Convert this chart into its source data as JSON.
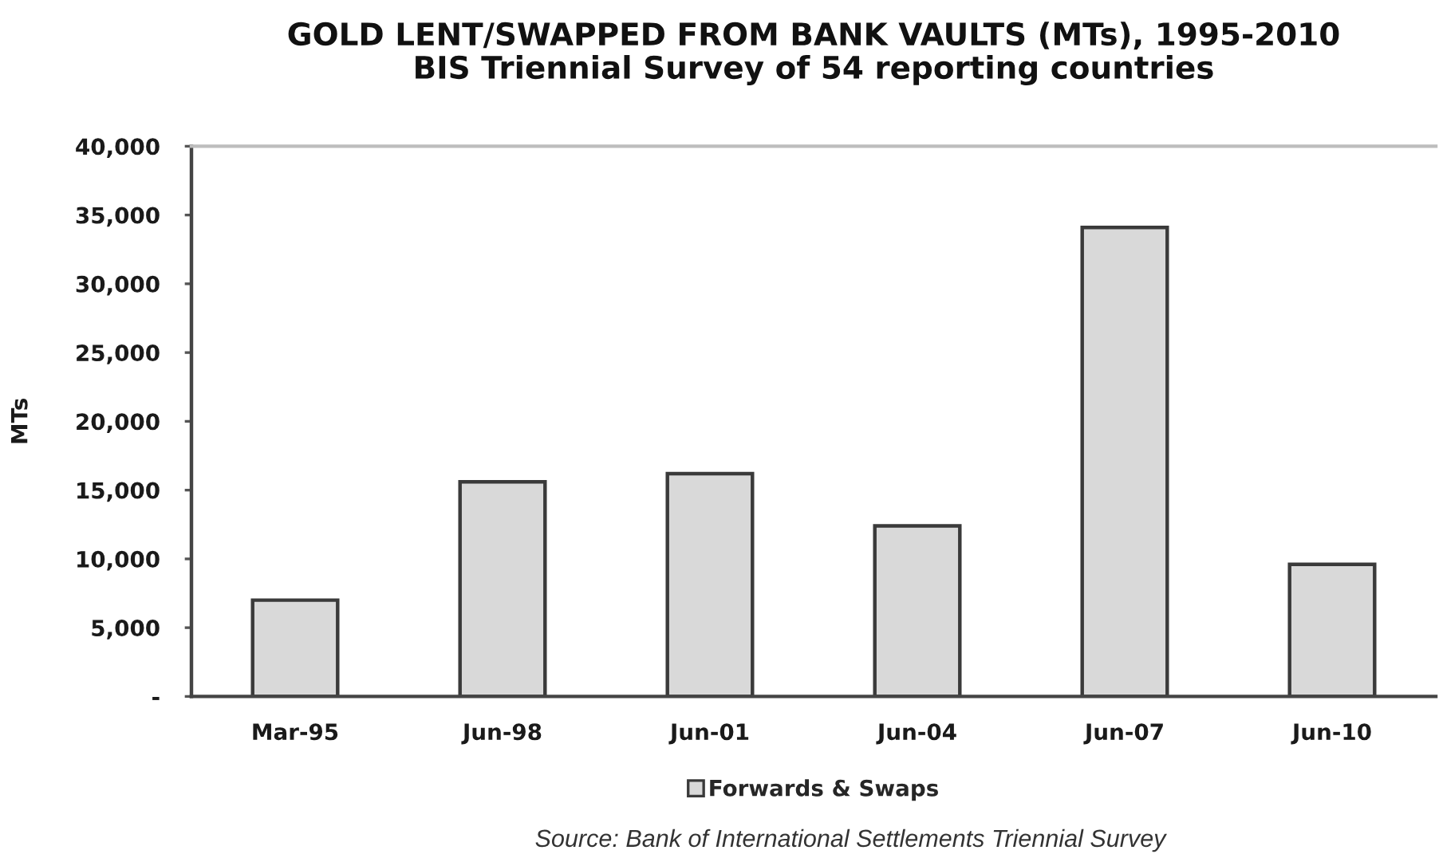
{
  "chart_data": {
    "type": "bar",
    "title": "GOLD LENT/SWAPPED FROM BANK VAULTS (MTs), 1995-2010",
    "subtitle": "BIS Triennial Survey of 54 reporting countries",
    "ylabel": "MTs",
    "annotations": [
      "Source: Bank of International Settlements Triennial Survey"
    ],
    "categories": [
      "Mar-95",
      "Jun-98",
      "Jun-01",
      "Jun-04",
      "Jun-07",
      "Jun-10"
    ],
    "series": [
      {
        "name": "Forwards & Swaps",
        "color": "#d9d9d9",
        "values": [
          7000,
          15600,
          16200,
          12400,
          34100,
          9600
        ]
      }
    ],
    "ylim": [
      0,
      40000
    ],
    "yticks": [
      {
        "value": 0,
        "label": "-"
      },
      {
        "value": 5000,
        "label": "5,000"
      },
      {
        "value": 10000,
        "label": "10,000"
      },
      {
        "value": 15000,
        "label": "15,000"
      },
      {
        "value": 20000,
        "label": "20,000"
      },
      {
        "value": 25000,
        "label": "25,000"
      },
      {
        "value": 30000,
        "label": "30,000"
      },
      {
        "value": 35000,
        "label": "35,000"
      },
      {
        "value": 40000,
        "label": "40,000"
      }
    ],
    "legend": "bottom"
  }
}
